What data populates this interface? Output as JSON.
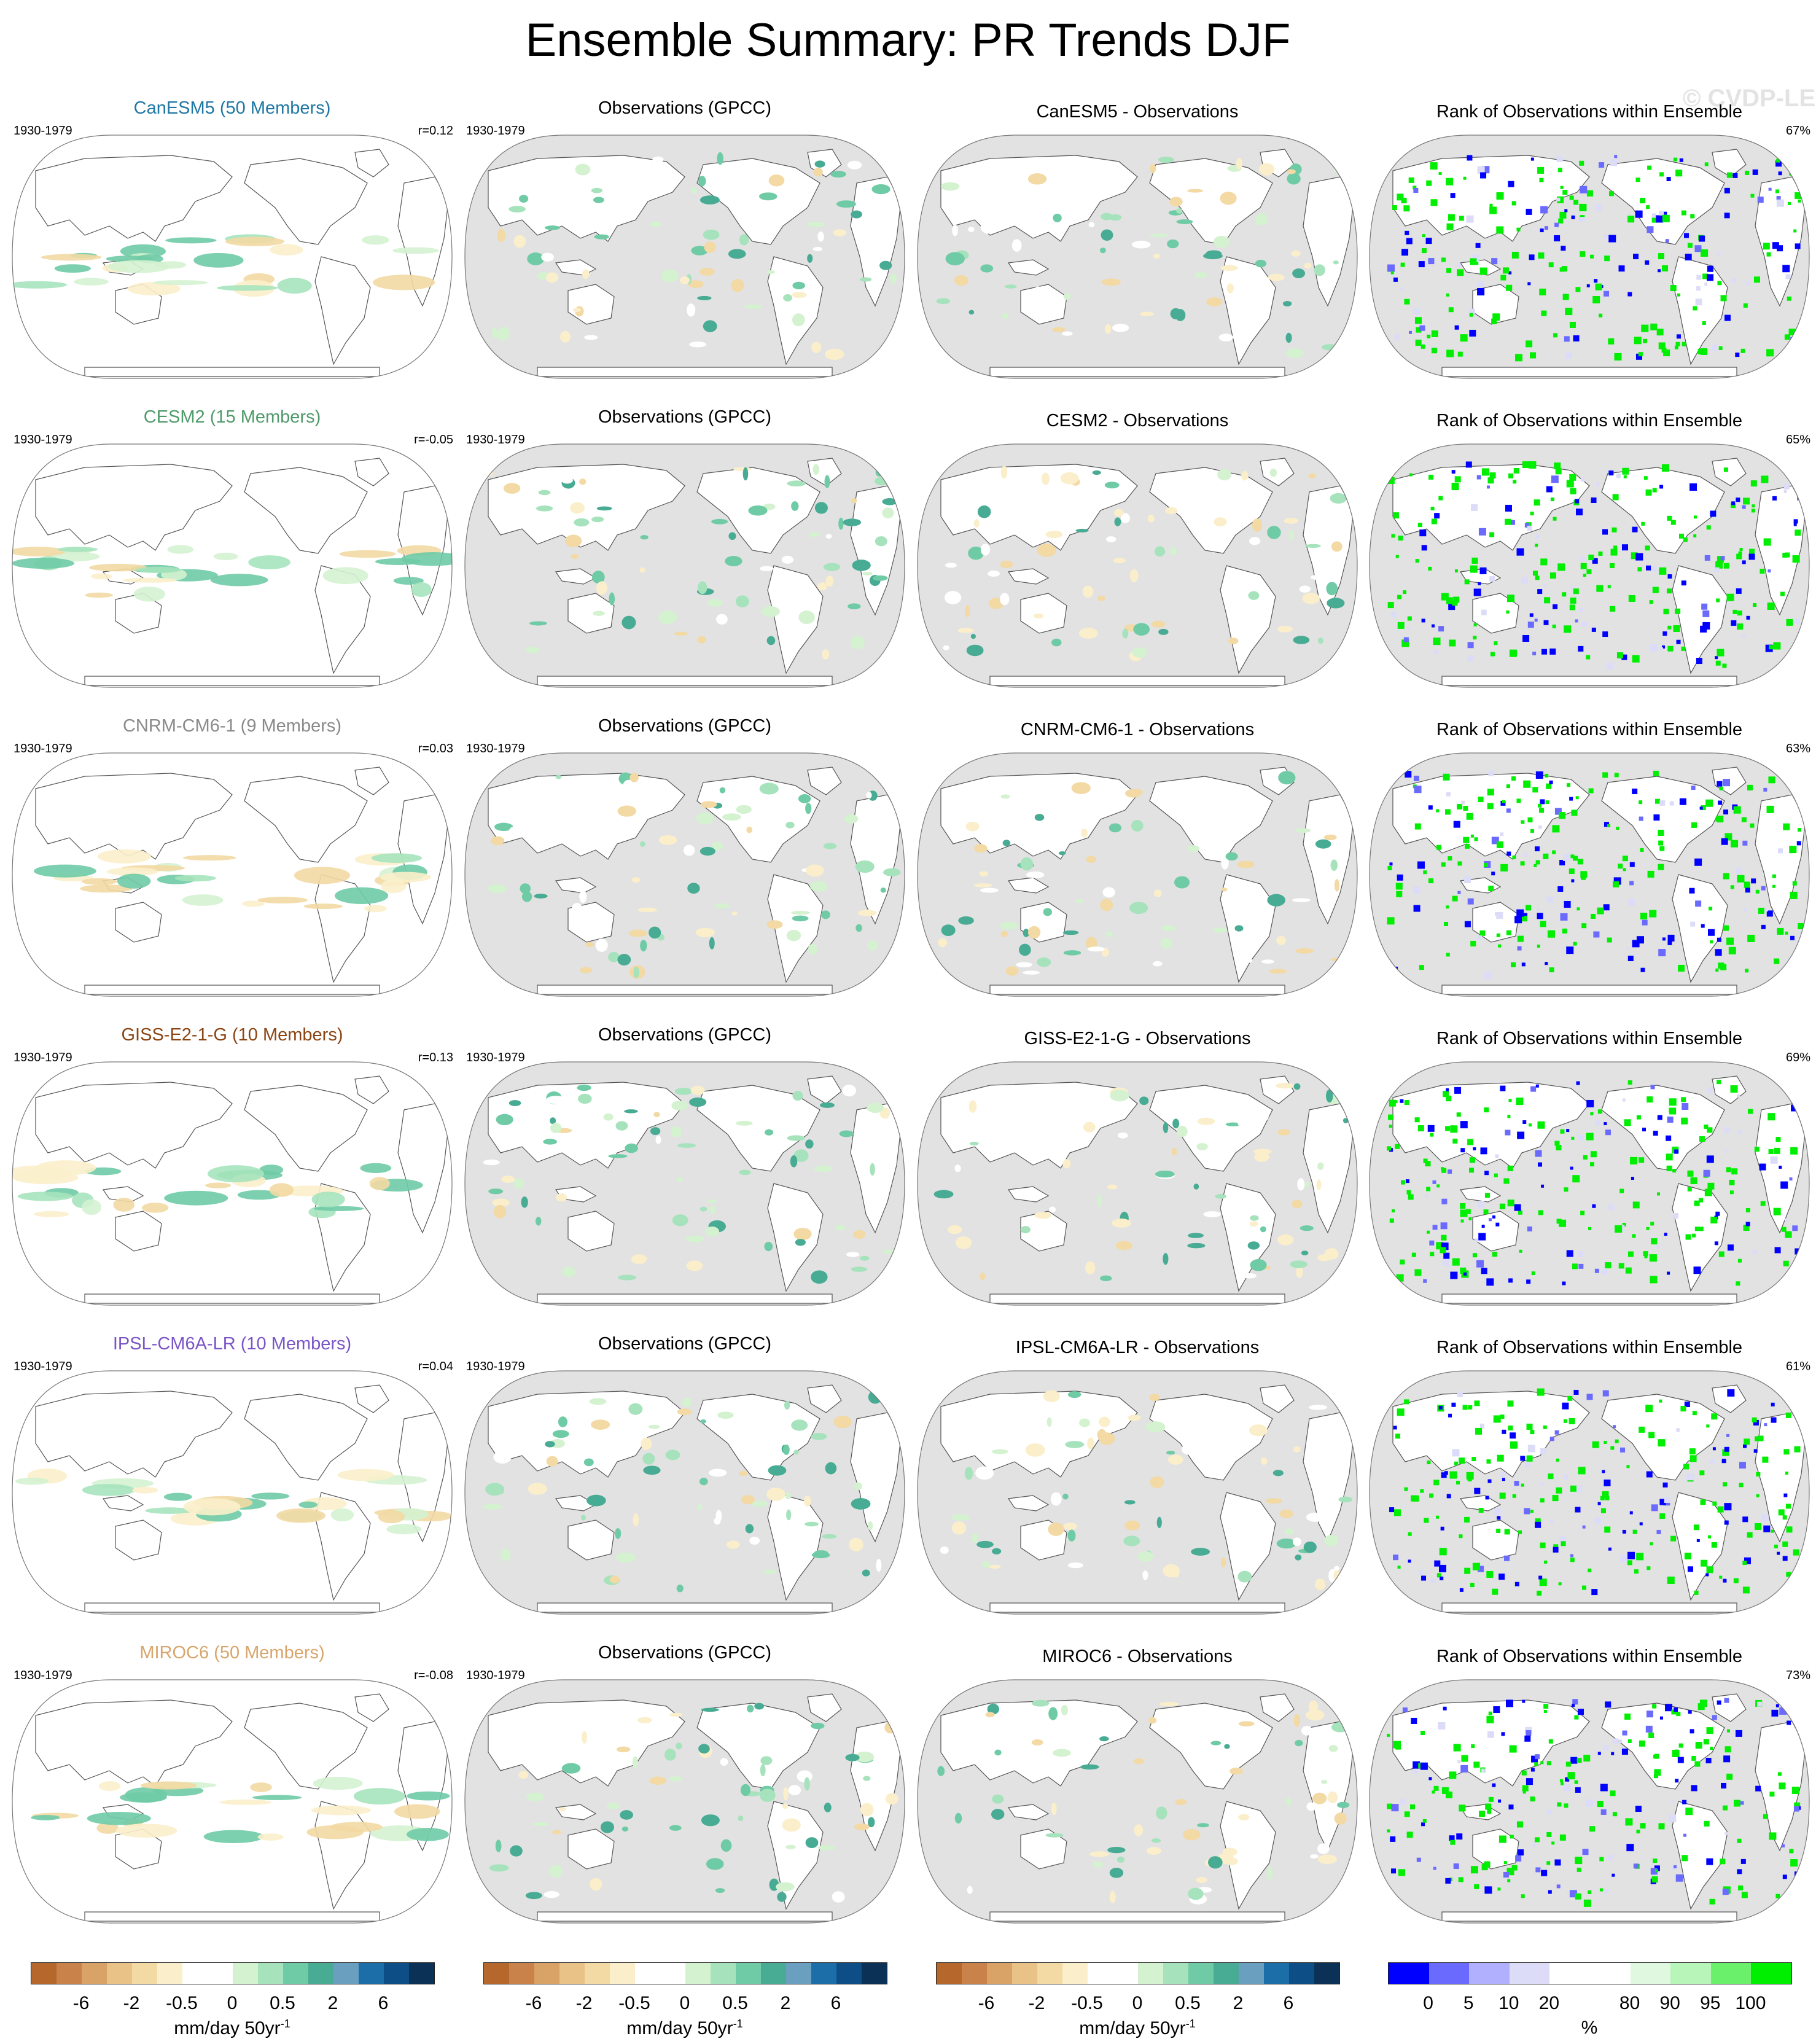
{
  "title": "Ensemble Summary: PR Trends DJF",
  "watermark": "© CVDP-LE",
  "colors": {
    "ocean_gray": "#e2e2e2",
    "coast": "#555555"
  },
  "rows": [
    {
      "model": {
        "title": "CanESM5 (50 Members)",
        "title_color": "#1f77a4",
        "period": "1930-1979",
        "r": "r=0.12"
      },
      "obs": {
        "title": "Observations (GPCC)",
        "period": "1930-1979"
      },
      "diff": {
        "title": "CanESM5 - Observations"
      },
      "rank": {
        "title": "Rank of Observations within Ensemble",
        "pct": "67%"
      }
    },
    {
      "model": {
        "title": "CESM2 (15 Members)",
        "title_color": "#4f9a6a",
        "period": "1930-1979",
        "r": "r=-0.05"
      },
      "obs": {
        "title": "Observations (GPCC)",
        "period": "1930-1979"
      },
      "diff": {
        "title": "CESM2 - Observations"
      },
      "rank": {
        "title": "Rank of Observations within Ensemble",
        "pct": "65%"
      }
    },
    {
      "model": {
        "title": "CNRM-CM6-1 (9 Members)",
        "title_color": "#8a8a8a",
        "period": "1930-1979",
        "r": "r=0.03"
      },
      "obs": {
        "title": "Observations (GPCC)",
        "period": "1930-1979"
      },
      "diff": {
        "title": "CNRM-CM6-1 - Observations"
      },
      "rank": {
        "title": "Rank of Observations within Ensemble",
        "pct": "63%"
      }
    },
    {
      "model": {
        "title": "GISS-E2-1-G (10 Members)",
        "title_color": "#8b4513",
        "period": "1930-1979",
        "r": "r=0.13"
      },
      "obs": {
        "title": "Observations (GPCC)",
        "period": "1930-1979"
      },
      "diff": {
        "title": "GISS-E2-1-G - Observations"
      },
      "rank": {
        "title": "Rank of Observations within Ensemble",
        "pct": "69%"
      }
    },
    {
      "model": {
        "title": "IPSL-CM6A-LR (10 Members)",
        "title_color": "#7b55c7",
        "period": "1930-1979",
        "r": "r=0.04"
      },
      "obs": {
        "title": "Observations (GPCC)",
        "period": "1930-1979"
      },
      "diff": {
        "title": "IPSL-CM6A-LR - Observations"
      },
      "rank": {
        "title": "Rank of Observations within Ensemble",
        "pct": "61%"
      }
    },
    {
      "model": {
        "title": "MIROC6 (50 Members)",
        "title_color": "#d9a56b",
        "period": "1930-1979",
        "r": "r=-0.08"
      },
      "obs": {
        "title": "Observations (GPCC)",
        "period": "1930-1979"
      },
      "diff": {
        "title": "MIROC6 - Observations"
      },
      "rank": {
        "title": "Rank of Observations within Ensemble",
        "pct": "73%"
      }
    }
  ],
  "chart_data": {
    "type": "heatmap",
    "title": "Ensemble Summary: PR Trends DJF",
    "projection": "Robinson, Pacific-centered",
    "layout": "6 rows x 4 columns of global maps",
    "trend_colorbar": {
      "tick_labels": [
        "-6",
        "-2",
        "-0.5",
        "0",
        "0.5",
        "2",
        "6"
      ],
      "unit": "mm/day 50yr",
      "unit_superscript": "-1",
      "colors": [
        "#b5672c",
        "#c9824a",
        "#d9a267",
        "#e9c287",
        "#f3d9a3",
        "#fbefcb",
        "#ffffff",
        "#ffffff",
        "#d4f2d0",
        "#a6e3bd",
        "#6fcba6",
        "#48ab93",
        "#6a9fc0",
        "#1c6ea8",
        "#0d4e86",
        "#0b3256"
      ]
    },
    "rank_colorbar": {
      "tick_labels": [
        "0",
        "5",
        "10",
        "20",
        "80",
        "90",
        "95",
        "100"
      ],
      "unit": "%",
      "colors": [
        "#0000ff",
        "#6a6aff",
        "#b0b0ff",
        "#dcdcf8",
        "#ffffff",
        "#ffffff",
        "#e0f8e0",
        "#b8f5b8",
        "#6af06a",
        "#00ee00"
      ]
    }
  }
}
